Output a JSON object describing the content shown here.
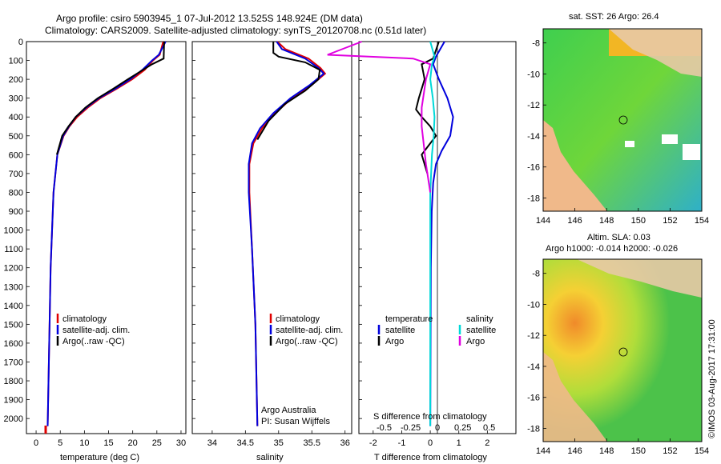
{
  "header": {
    "title_line1": "Argo profile: csiro 5903945_1 07-Jul-2012 13.525S 148.924E (DM data)",
    "title_line2": "Climatology: CARS2009. Satellite-adjusted climatology: synTS_20120708.nc (0.51d later)"
  },
  "colors": {
    "climatology": "#e00000",
    "satellite": "#0000dd",
    "argo": "#000000",
    "cyan": "#00d8d8",
    "magenta": "#e000e0"
  },
  "chart_data": [
    {
      "type": "line",
      "name": "temperature",
      "xlabel": "temperature (deg C)",
      "ylabel": "depth",
      "xlim": [
        -2,
        31
      ],
      "ylim": [
        2080,
        0
      ],
      "xticks": [
        "0",
        "5",
        "10",
        "15",
        "20",
        "25",
        "30"
      ],
      "yticks": [
        "0",
        "100",
        "200",
        "300",
        "400",
        "500",
        "600",
        "700",
        "800",
        "900",
        "1000",
        "1100",
        "1200",
        "1300",
        "1400",
        "1500",
        "1600",
        "1700",
        "1800",
        "1900",
        "2000"
      ],
      "legend": [
        "climatology",
        "satellite-adj. clim.",
        "Argo(..raw -QC)"
      ],
      "series": [
        {
          "name": "climatology",
          "x": [
            26.3,
            25.6,
            24.2,
            22.5,
            19.9,
            16.7,
            13.3,
            10.7,
            8.5,
            6.9,
            5.7,
            4.4,
            3.6,
            3.0,
            2.4
          ],
          "y": [
            0,
            70,
            100,
            150,
            200,
            250,
            300,
            350,
            400,
            450,
            500,
            600,
            800,
            1200,
            2040
          ]
        },
        {
          "name": "satellite",
          "x": [
            26.8,
            25.4,
            24.0,
            22.0,
            19.5,
            16.4,
            13.0,
            10.4,
            8.2,
            6.8,
            5.6,
            4.4,
            3.6,
            3.0,
            2.4
          ],
          "y": [
            0,
            70,
            100,
            150,
            200,
            250,
            300,
            350,
            400,
            450,
            500,
            600,
            800,
            1200,
            2040
          ]
        },
        {
          "name": "argo",
          "x": [
            26.5,
            26.4,
            24.0,
            21.5,
            19.0,
            16.0,
            12.8,
            10.2,
            8.2,
            6.7,
            5.4,
            4.3
          ],
          "y": [
            0,
            90,
            120,
            160,
            200,
            250,
            300,
            350,
            400,
            450,
            500,
            600
          ]
        }
      ]
    },
    {
      "type": "line",
      "name": "salinity",
      "xlabel": "salinity",
      "xlim": [
        33.7,
        36.1
      ],
      "ylim": [
        2080,
        0
      ],
      "xticks": [
        "34",
        "34.5",
        "35",
        "35.5",
        "36"
      ],
      "legend": [
        "climatology",
        "satellite-adj. clim.",
        "Argo(..raw -QC)"
      ],
      "annotation": [
        "Argo Australia",
        "PI: Susan Wijffels"
      ],
      "series": [
        {
          "name": "climatology",
          "x": [
            34.98,
            35.1,
            35.45,
            35.63,
            35.7,
            35.5,
            35.2,
            34.95,
            34.75,
            34.62,
            34.56,
            34.56,
            34.6,
            34.65,
            34.68
          ],
          "y": [
            0,
            40,
            90,
            140,
            170,
            230,
            300,
            380,
            460,
            540,
            650,
            800,
            1100,
            1500,
            2040
          ]
        },
        {
          "name": "satellite",
          "x": [
            34.97,
            35.05,
            35.4,
            35.6,
            35.68,
            35.47,
            35.18,
            34.92,
            34.72,
            34.6,
            34.55,
            34.55,
            34.6,
            34.65,
            34.68
          ],
          "y": [
            0,
            40,
            90,
            140,
            170,
            230,
            300,
            380,
            460,
            540,
            650,
            800,
            1100,
            1500,
            2040
          ]
        },
        {
          "name": "argo",
          "x": [
            34.92,
            34.92,
            35.0,
            35.4,
            35.62,
            35.6,
            35.4,
            35.1,
            34.85,
            34.68
          ],
          "y": [
            0,
            60,
            80,
            110,
            150,
            200,
            260,
            330,
            420,
            520
          ]
        }
      ]
    },
    {
      "type": "line",
      "name": "difference",
      "xlabel": "T difference from climatology",
      "xlabel2": "S difference from climatology",
      "xlim": [
        -2.5,
        3
      ],
      "ylim": [
        2080,
        0
      ],
      "xticks": [
        "-2",
        "-1",
        "0",
        "1",
        "2"
      ],
      "xticks2": [
        "-0.5",
        "-0.25",
        "0",
        "0.25",
        "0.5"
      ],
      "legend_temperature": [
        "temperature",
        "satellite",
        "Argo"
      ],
      "legend_salinity": [
        "salinity",
        "satellite",
        "Argo"
      ],
      "series": [
        {
          "name": "satellite T",
          "x": [
            0.5,
            0.2,
            0.1,
            0.3,
            0.6,
            0.8,
            0.7,
            0.4,
            0.2,
            0.1,
            0.05,
            0.02,
            0
          ],
          "y": [
            0,
            80,
            120,
            200,
            300,
            400,
            500,
            580,
            650,
            750,
            900,
            1200,
            2040
          ]
        },
        {
          "name": "Argo T",
          "x": [
            0.3,
            0.1,
            -0.3,
            -0.2,
            -0.4,
            -0.5,
            -0.3,
            0,
            0.2,
            -0.1,
            -0.3,
            -0.1
          ],
          "y": [
            0,
            90,
            120,
            200,
            300,
            360,
            400,
            450,
            500,
            560,
            600,
            700
          ]
        },
        {
          "name": "satellite S",
          "x": [
            0,
            0.05,
            0.02,
            0,
            0.03,
            0.05,
            0.04,
            0.02,
            0,
            0
          ],
          "y": [
            0,
            80,
            120,
            200,
            300,
            400,
            500,
            600,
            800,
            2040
          ]
        },
        {
          "name": "Argo S",
          "x": [
            -0.8,
            -1.2,
            -0.2,
            0,
            -0.05,
            -0.1,
            -0.1,
            -0.05,
            0
          ],
          "y": [
            0,
            70,
            90,
            120,
            200,
            350,
            450,
            650,
            800
          ]
        }
      ]
    }
  ],
  "maps": [
    {
      "title": "sat. SST: 26  Argo: 26.4",
      "xticks": [
        "144",
        "146",
        "148",
        "150",
        "152",
        "154"
      ],
      "yticks": [
        "-8",
        "-10",
        "-12",
        "-14",
        "-16",
        "-18"
      ]
    },
    {
      "title": "Altim. SLA: 0.03",
      "subtitle": "Argo h1000: -0.014  h2000: -0.026",
      "xticks": [
        "144",
        "146",
        "148",
        "150",
        "152",
        "154"
      ],
      "yticks": [
        "-8",
        "-10",
        "-12",
        "-14",
        "-16",
        "-18"
      ]
    }
  ],
  "footer": "©IMOS 03-Aug-2017 17:31:00"
}
